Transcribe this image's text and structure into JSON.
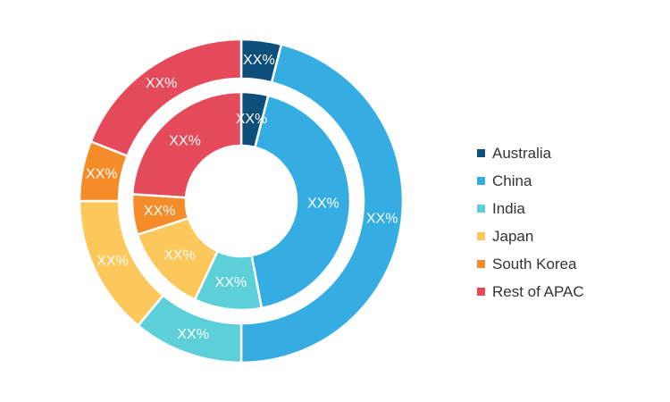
{
  "chart_data": {
    "type": "pie",
    "title": "",
    "legend_position": "right",
    "categories": [
      "Australia",
      "China",
      "India",
      "Japan",
      "South Korea",
      "Rest of APAC"
    ],
    "colors": [
      "#0d4f7a",
      "#35ade3",
      "#5ccfd8",
      "#fcc75b",
      "#f58c2a",
      "#e44a5a"
    ],
    "series": [
      {
        "ring": "outer",
        "values": [
          4,
          46,
          11,
          14,
          6,
          19
        ],
        "labels": [
          "XX%",
          "XX%",
          "XX%",
          "XX%",
          "XX%",
          "XX%"
        ]
      },
      {
        "ring": "inner",
        "values": [
          4,
          43,
          10,
          13,
          6,
          24
        ],
        "labels": [
          "XX%",
          "XX%",
          "XX%",
          "XX%",
          "XX%",
          "XX%"
        ]
      }
    ]
  }
}
